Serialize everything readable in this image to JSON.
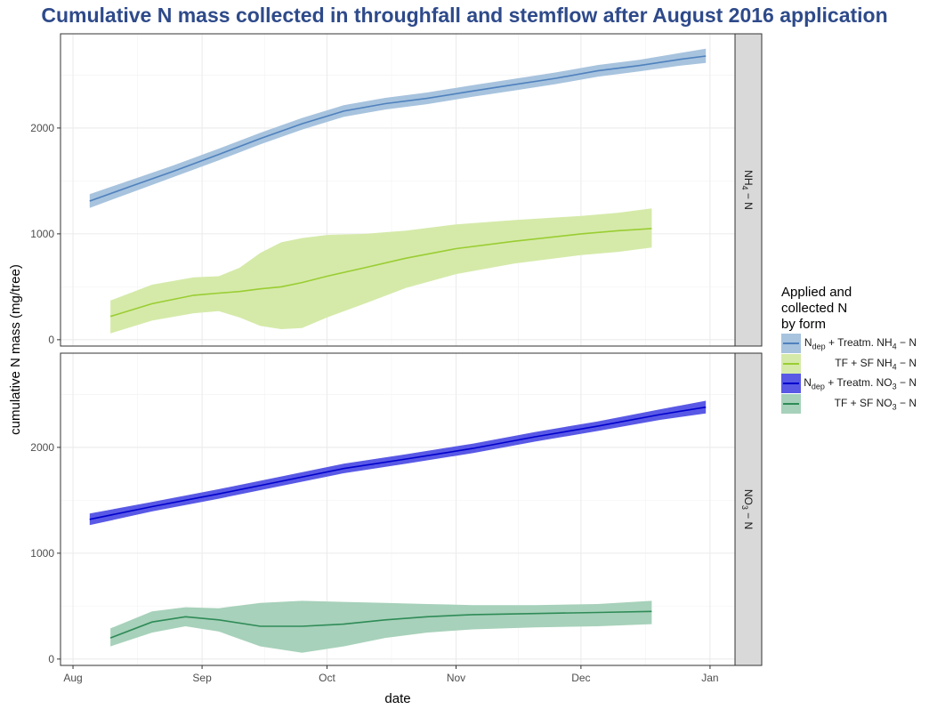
{
  "chart_data": {
    "type": "line",
    "title": "Cumulative N mass collected in throughfall and stemflow after August 2016 application",
    "xlabel": "date",
    "ylabel": "cumulative N mass (mg/tree)",
    "x_ticks": [
      "Aug",
      "Sep",
      "Oct",
      "Nov",
      "Dec",
      "Jan"
    ],
    "x_tick_dates": [
      "2016-08-01",
      "2016-09-01",
      "2016-10-01",
      "2016-11-01",
      "2016-12-01",
      "2017-01-01"
    ],
    "xlim": [
      "2016-07-29",
      "2017-01-07"
    ],
    "y_ticks": [
      0,
      1000,
      2000
    ],
    "ylim": [
      -60,
      2890
    ],
    "grid": true,
    "legend": {
      "title": "Applied and\ncollected N\nby form",
      "position": "right",
      "entries": [
        {
          "label_main": "N",
          "label_sub": "dep",
          "label_rest": " + Treatm. NH",
          "label_sub2": "4",
          "label_end": " − N",
          "line_color": "#4F81BD",
          "band_color": "#A7C3DE"
        },
        {
          "label_main": "",
          "label_sub": "",
          "label_rest": "TF + SF NH",
          "label_sub2": "4",
          "label_end": " − N",
          "line_color": "#9ACD32",
          "band_color": "#D5EAA9"
        },
        {
          "label_main": "N",
          "label_sub": "dep",
          "label_rest": " + Treatm. NO",
          "label_sub2": "3",
          "label_end": " − N",
          "line_color": "#0000CD",
          "band_color": "#5959E6"
        },
        {
          "label_main": "",
          "label_sub": "",
          "label_rest": "TF + SF NO",
          "label_sub2": "3",
          "label_end": " − N",
          "line_color": "#2E8B57",
          "band_color": "#A7D1BA"
        }
      ]
    },
    "panels": [
      {
        "strip_main": "NH",
        "strip_sub": "4",
        "strip_end": " − N",
        "series": [
          {
            "name": "Ndep + Treatm. NH4-N",
            "line_color": "#4F81BD",
            "band_color": "#A7C3DE",
            "points": [
              {
                "x": "2016-08-05",
                "y": 1310,
                "lo": 1245,
                "hi": 1375
              },
              {
                "x": "2016-08-15",
                "y": 1450,
                "lo": 1390,
                "hi": 1510
              },
              {
                "x": "2016-08-25",
                "y": 1590,
                "lo": 1535,
                "hi": 1645
              },
              {
                "x": "2016-09-05",
                "y": 1750,
                "lo": 1695,
                "hi": 1805
              },
              {
                "x": "2016-09-15",
                "y": 1900,
                "lo": 1845,
                "hi": 1955
              },
              {
                "x": "2016-09-25",
                "y": 2040,
                "lo": 1985,
                "hi": 2095
              },
              {
                "x": "2016-10-05",
                "y": 2160,
                "lo": 2105,
                "hi": 2215
              },
              {
                "x": "2016-10-15",
                "y": 2230,
                "lo": 2175,
                "hi": 2285
              },
              {
                "x": "2016-10-25",
                "y": 2280,
                "lo": 2225,
                "hi": 2335
              },
              {
                "x": "2016-11-05",
                "y": 2350,
                "lo": 2295,
                "hi": 2405
              },
              {
                "x": "2016-11-15",
                "y": 2410,
                "lo": 2355,
                "hi": 2465
              },
              {
                "x": "2016-11-25",
                "y": 2470,
                "lo": 2415,
                "hi": 2525
              },
              {
                "x": "2016-12-05",
                "y": 2540,
                "lo": 2485,
                "hi": 2595
              },
              {
                "x": "2016-12-15",
                "y": 2590,
                "lo": 2535,
                "hi": 2645
              },
              {
                "x": "2016-12-25",
                "y": 2650,
                "lo": 2590,
                "hi": 2710
              },
              {
                "x": "2016-12-31",
                "y": 2680,
                "lo": 2615,
                "hi": 2750
              }
            ]
          },
          {
            "name": "TF + SF NH4-N",
            "line_color": "#9ACD32",
            "band_color": "#D5EAA9",
            "points": [
              {
                "x": "2016-08-10",
                "y": 220,
                "lo": 60,
                "hi": 370
              },
              {
                "x": "2016-08-20",
                "y": 340,
                "lo": 180,
                "hi": 520
              },
              {
                "x": "2016-08-30",
                "y": 420,
                "lo": 250,
                "hi": 590
              },
              {
                "x": "2016-09-05",
                "y": 440,
                "lo": 270,
                "hi": 600
              },
              {
                "x": "2016-09-10",
                "y": 455,
                "lo": 210,
                "hi": 680
              },
              {
                "x": "2016-09-15",
                "y": 480,
                "lo": 130,
                "hi": 820
              },
              {
                "x": "2016-09-20",
                "y": 500,
                "lo": 100,
                "hi": 920
              },
              {
                "x": "2016-09-25",
                "y": 540,
                "lo": 110,
                "hi": 960
              },
              {
                "x": "2016-10-01",
                "y": 600,
                "lo": 210,
                "hi": 990
              },
              {
                "x": "2016-10-10",
                "y": 680,
                "lo": 340,
                "hi": 1000
              },
              {
                "x": "2016-10-20",
                "y": 770,
                "lo": 490,
                "hi": 1030
              },
              {
                "x": "2016-11-01",
                "y": 860,
                "lo": 620,
                "hi": 1090
              },
              {
                "x": "2016-11-15",
                "y": 930,
                "lo": 720,
                "hi": 1130
              },
              {
                "x": "2016-12-01",
                "y": 1000,
                "lo": 800,
                "hi": 1170
              },
              {
                "x": "2016-12-10",
                "y": 1030,
                "lo": 830,
                "hi": 1200
              },
              {
                "x": "2016-12-18",
                "y": 1050,
                "lo": 870,
                "hi": 1240
              }
            ]
          }
        ]
      },
      {
        "strip_main": "NO",
        "strip_sub": "3",
        "strip_end": " − N",
        "series": [
          {
            "name": "Ndep + Treatm. NO3-N",
            "line_color": "#0000CD",
            "band_color": "#5959E6",
            "points": [
              {
                "x": "2016-08-05",
                "y": 1320,
                "lo": 1265,
                "hi": 1375
              },
              {
                "x": "2016-08-20",
                "y": 1440,
                "lo": 1395,
                "hi": 1485
              },
              {
                "x": "2016-09-05",
                "y": 1560,
                "lo": 1515,
                "hi": 1605
              },
              {
                "x": "2016-09-20",
                "y": 1680,
                "lo": 1635,
                "hi": 1725
              },
              {
                "x": "2016-10-05",
                "y": 1800,
                "lo": 1755,
                "hi": 1845
              },
              {
                "x": "2016-10-20",
                "y": 1890,
                "lo": 1845,
                "hi": 1935
              },
              {
                "x": "2016-11-05",
                "y": 1990,
                "lo": 1945,
                "hi": 2035
              },
              {
                "x": "2016-11-20",
                "y": 2100,
                "lo": 2055,
                "hi": 2145
              },
              {
                "x": "2016-12-05",
                "y": 2200,
                "lo": 2155,
                "hi": 2245
              },
              {
                "x": "2016-12-20",
                "y": 2310,
                "lo": 2260,
                "hi": 2360
              },
              {
                "x": "2016-12-31",
                "y": 2380,
                "lo": 2320,
                "hi": 2440
              }
            ]
          },
          {
            "name": "TF + SF NO3-N",
            "line_color": "#2E8B57",
            "band_color": "#A7D1BA",
            "points": [
              {
                "x": "2016-08-10",
                "y": 200,
                "lo": 120,
                "hi": 290
              },
              {
                "x": "2016-08-20",
                "y": 350,
                "lo": 250,
                "hi": 450
              },
              {
                "x": "2016-08-28",
                "y": 400,
                "lo": 310,
                "hi": 490
              },
              {
                "x": "2016-09-05",
                "y": 370,
                "lo": 260,
                "hi": 480
              },
              {
                "x": "2016-09-15",
                "y": 310,
                "lo": 120,
                "hi": 530
              },
              {
                "x": "2016-09-25",
                "y": 310,
                "lo": 60,
                "hi": 550
              },
              {
                "x": "2016-10-05",
                "y": 330,
                "lo": 120,
                "hi": 540
              },
              {
                "x": "2016-10-15",
                "y": 370,
                "lo": 200,
                "hi": 530
              },
              {
                "x": "2016-10-25",
                "y": 400,
                "lo": 250,
                "hi": 520
              },
              {
                "x": "2016-11-05",
                "y": 420,
                "lo": 280,
                "hi": 510
              },
              {
                "x": "2016-11-20",
                "y": 430,
                "lo": 300,
                "hi": 510
              },
              {
                "x": "2016-12-05",
                "y": 440,
                "lo": 310,
                "hi": 520
              },
              {
                "x": "2016-12-18",
                "y": 450,
                "lo": 330,
                "hi": 550
              }
            ]
          }
        ]
      }
    ]
  }
}
